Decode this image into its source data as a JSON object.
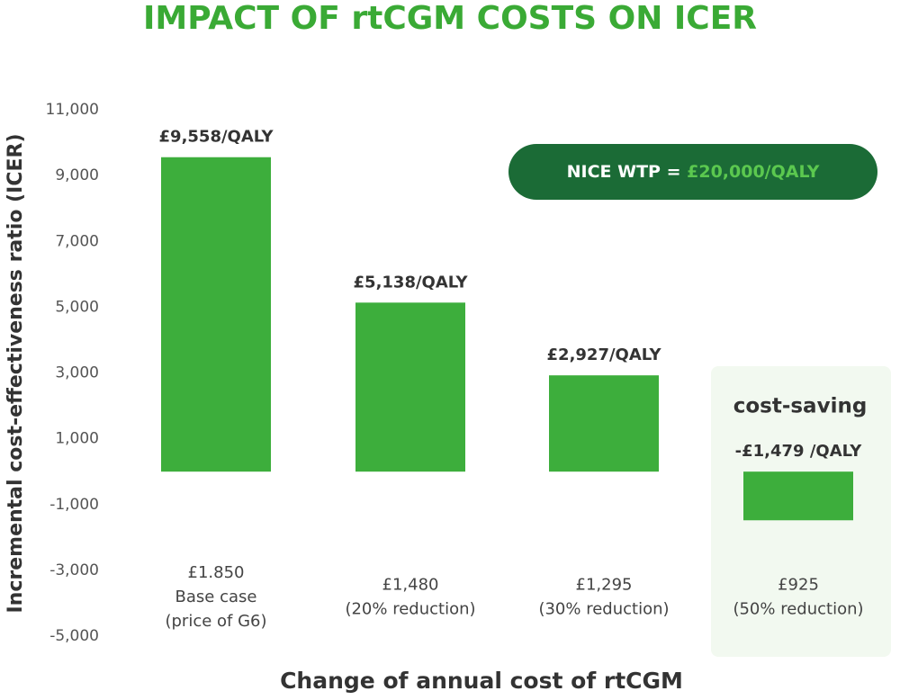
{
  "chart_data": {
    "type": "bar",
    "title": "IMPACT OF rtCGM COSTS ON ICER",
    "y_label": "Incremental cost-effectiveness ratio (ICER)",
    "x_label": "Change of annual cost of rtCGM",
    "categories": [
      [
        "£1.850",
        "Base case",
        "(price of G6)"
      ],
      [
        "£1,480",
        "(20% reduction)"
      ],
      [
        "£1,295",
        "(30% reduction)"
      ],
      [
        "£925",
        "(50% reduction)"
      ]
    ],
    "values": [
      9558,
      5138,
      2927,
      -1479
    ],
    "value_labels": [
      "£9,558/QALY",
      "£5,138/QALY",
      "£2,927/QALY",
      "-£1,479 /QALY"
    ],
    "color": "#3dae3c",
    "ylim": [
      -5000,
      11000
    ],
    "yticks": [
      {
        "value": 11000,
        "label": "11,000"
      },
      {
        "value": 9000,
        "label": "9,000"
      },
      {
        "value": 7000,
        "label": "7,000"
      },
      {
        "value": 5000,
        "label": "5,000"
      },
      {
        "value": 3000,
        "label": "3,000"
      },
      {
        "value": 1000,
        "label": "1,000"
      },
      {
        "value": -1000,
        "label": "-1,000"
      },
      {
        "value": -3000,
        "label": "-3,000"
      },
      {
        "value": -5000,
        "label": "-5,000"
      }
    ],
    "grid": false,
    "wtp_label": "NICE WTP =",
    "wtp_value": "£20,000/QALY",
    "cost_saving_label": "cost-saving"
  }
}
